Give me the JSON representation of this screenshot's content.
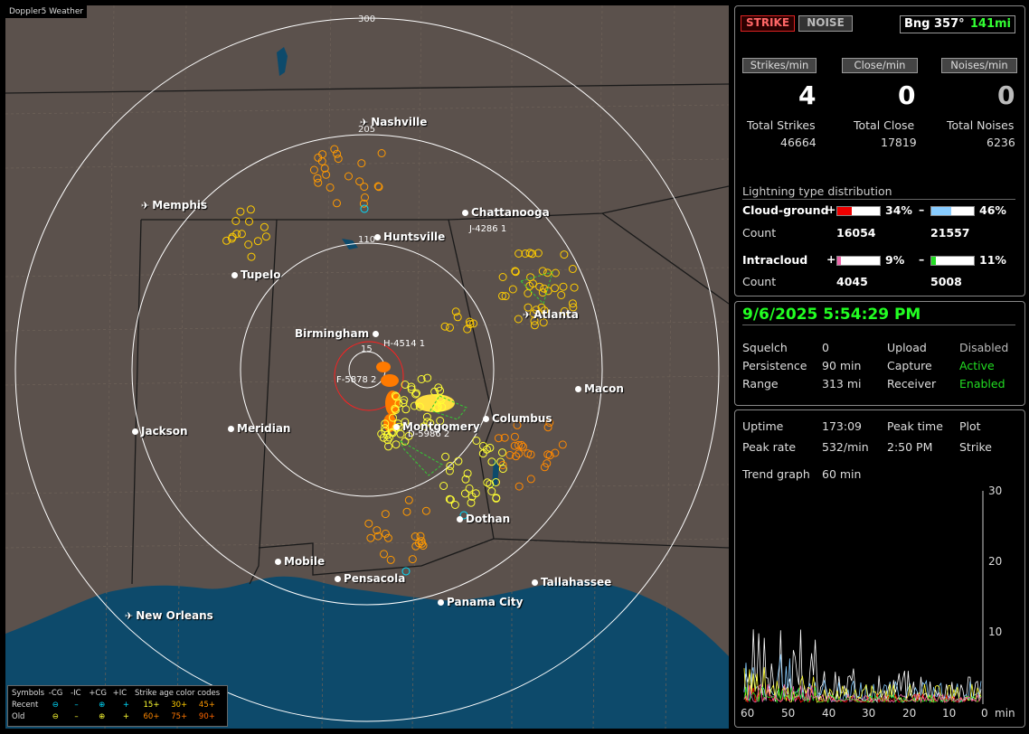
{
  "map": {
    "app_title": "Doppler5 Weather",
    "ring_labels": [
      "300",
      "205",
      "110",
      "15"
    ],
    "cities": [
      {
        "name": "Nashville",
        "icon": "airport"
      },
      {
        "name": "Memphis",
        "icon": "airport"
      },
      {
        "name": "Chattanooga",
        "icon": "dot"
      },
      {
        "name": "Huntsville",
        "icon": "dot"
      },
      {
        "name": "Tupelo",
        "icon": "dot"
      },
      {
        "name": "Atlanta",
        "icon": "airport"
      },
      {
        "name": "Birmingham",
        "icon": "dot"
      },
      {
        "name": "Macon",
        "icon": "dot"
      },
      {
        "name": "Jackson",
        "icon": "dot"
      },
      {
        "name": "Meridian",
        "icon": "dot"
      },
      {
        "name": "Montgomery",
        "icon": "dot"
      },
      {
        "name": "Columbus",
        "icon": "dot"
      },
      {
        "name": "Dothan",
        "icon": "dot"
      },
      {
        "name": "Mobile",
        "icon": "dot"
      },
      {
        "name": "Pensacola",
        "icon": "dot"
      },
      {
        "name": "Tallahassee",
        "icon": "dot"
      },
      {
        "name": "Panama City",
        "icon": "dot"
      },
      {
        "name": "New Orleans",
        "icon": "airport"
      }
    ],
    "storm_labels": [
      "J-4286 1",
      "H-4514 1",
      "F-5878 2",
      "D-5986 2"
    ]
  },
  "legend": {
    "symbols": "Symbols",
    "minus_cg": "-CG",
    "minus_ic": "-IC",
    "plus_cg": "+CG",
    "plus_ic": "+IC",
    "age_title": "Strike age color codes",
    "recent": "Recent",
    "old": "Old",
    "ages_recent": [
      "15+",
      "30+",
      "45+"
    ],
    "ages_old": [
      "60+",
      "75+",
      "90+"
    ]
  },
  "panel": {
    "strike_btn": "STRIKE",
    "noise_btn": "NOISE",
    "bng_label": "Bng 357°",
    "bng_range": "141mi",
    "strikes_per_min_label": "Strikes/min",
    "close_per_min_label": "Close/min",
    "noises_per_min_label": "Noises/min",
    "strikes_per_min": "4",
    "close_per_min": "0",
    "noises_per_min": "0",
    "total_strikes_label": "Total Strikes",
    "total_close_label": "Total Close",
    "total_noises_label": "Total Noises",
    "total_strikes": "46664",
    "total_close": "17819",
    "total_noises": "6236",
    "dist_title": "Lightning type distribution",
    "cg_label": "Cloud-ground",
    "ic_label": "Intracloud",
    "count_label": "Count",
    "cg_pos_pct": "34%",
    "cg_neg_pct": "46%",
    "cg_pos_count": "16054",
    "cg_neg_count": "21557",
    "ic_pos_pct": "9%",
    "ic_neg_pct": "11%",
    "ic_pos_count": "4045",
    "ic_neg_count": "5008",
    "cg_pos_frac": 0.34,
    "cg_neg_frac": 0.46,
    "ic_pos_frac": 0.09,
    "ic_neg_frac": 0.11
  },
  "status": {
    "datetime": "9/6/2025 5:54:29 PM",
    "squelch_label": "Squelch",
    "squelch": "0",
    "persistence_label": "Persistence",
    "persistence": "90 min",
    "range_label": "Range",
    "range": "313 mi",
    "upload_label": "Upload",
    "upload": "Disabled",
    "capture_label": "Capture",
    "capture": "Active",
    "receiver_label": "Receiver",
    "receiver": "Enabled"
  },
  "stats": {
    "uptime_label": "Uptime",
    "uptime": "173:09",
    "peak_time_label": "Peak time",
    "peak_time": "2:50 PM",
    "plot_label": "Plot",
    "plot": "Strike",
    "peak_rate_label": "Peak rate",
    "peak_rate": "532/min",
    "trend_label": "Trend graph",
    "trend": "60 min",
    "y_ticks": [
      "30",
      "20",
      "10"
    ],
    "x_ticks": [
      "60",
      "50",
      "40",
      "30",
      "20",
      "10",
      "0"
    ],
    "x_unit": "min"
  },
  "colors": {
    "recent": "#00e0ff",
    "age15": "#ffff33",
    "age30": "#ffcc00",
    "age45": "#ff9900",
    "age60": "#ff8800",
    "age75": "#ff7700",
    "age90": "#ff6600",
    "water": "#0d4a6b"
  }
}
